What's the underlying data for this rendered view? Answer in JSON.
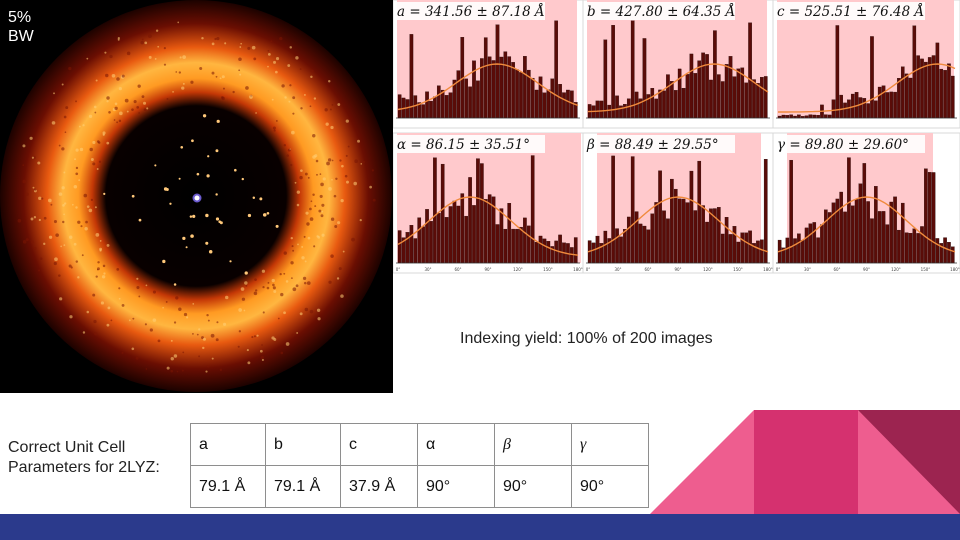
{
  "diffraction_image": {
    "label": "5%\nBW"
  },
  "histograms": {
    "panels": [
      {
        "label": "a = 341.56 ± 87.18 Å",
        "ticks": [
          "",
          "",
          "",
          ""
        ]
      },
      {
        "label": "b = 427.80 ± 64.35 Å",
        "ticks": [
          "",
          "",
          "",
          ""
        ]
      },
      {
        "label": "c = 525.51 ± 76.48 Å",
        "ticks": [
          "",
          "",
          "",
          ""
        ]
      },
      {
        "label": "α = 86.15 ± 35.51°",
        "ticks": [
          "0°",
          "30°",
          "60°",
          "90°",
          "120°",
          "150°",
          "180°"
        ]
      },
      {
        "label": "β = 88.49 ± 29.55°",
        "ticks": [
          "0°",
          "30°",
          "60°",
          "90°",
          "120°",
          "150°",
          "180°"
        ]
      },
      {
        "label": "γ = 89.80 ± 29.60°",
        "ticks": [
          "0°",
          "30°",
          "60°",
          "90°",
          "120°",
          "150°",
          "180°"
        ]
      }
    ],
    "colors": {
      "shade": "#ffc9cc",
      "bar": "#5a0c08",
      "fit": "#f08a3c"
    }
  },
  "yield_text": "Indexing yield: 100% of 200 images",
  "cell_caption": "Correct Unit Cell Parameters for 2LYZ:",
  "cell_table": {
    "headers": [
      "a",
      "b",
      "c",
      "α",
      "β",
      "γ"
    ],
    "values": [
      "79.1 Å",
      "79.1 Å",
      "37.9 Å",
      "90°",
      "90°",
      "90°"
    ]
  },
  "colors": {
    "footer": "#2b3a8c",
    "deco_light": "#ee5d8f",
    "deco_mid": "#d5316f",
    "deco_dark": "#9c2450"
  }
}
